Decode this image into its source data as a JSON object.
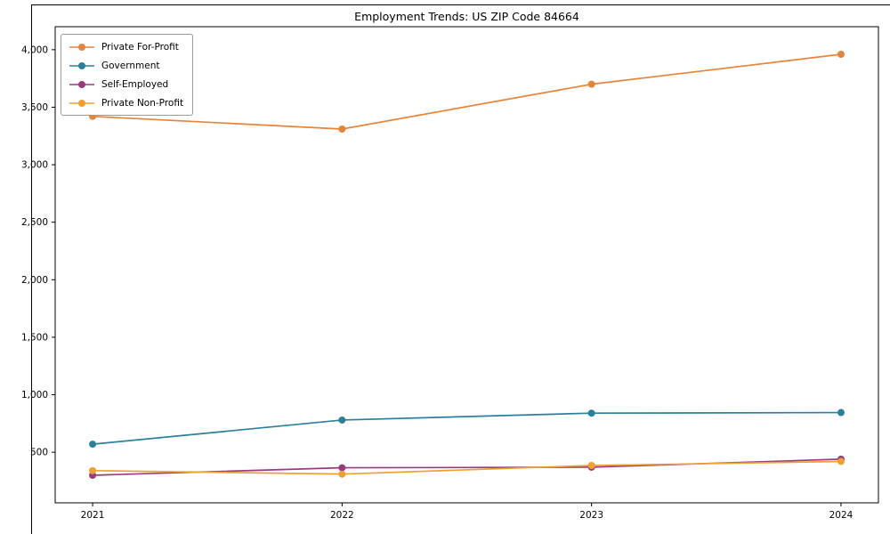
{
  "chart_data": {
    "type": "line",
    "title": "Employment Trends: US ZIP Code 84664",
    "x": [
      2021,
      2022,
      2023,
      2024
    ],
    "x_tick_labels": [
      "2021",
      "2022",
      "2023",
      "2024"
    ],
    "series": [
      {
        "name": "Private For-Profit",
        "color": "#e8833a",
        "values": [
          3420,
          3310,
          3700,
          3960
        ]
      },
      {
        "name": "Government",
        "color": "#2a7f9c",
        "values": [
          570,
          780,
          840,
          845
        ]
      },
      {
        "name": "Self-Employed",
        "color": "#993c7f",
        "values": [
          300,
          365,
          370,
          440
        ]
      },
      {
        "name": "Private Non-Profit",
        "color": "#f0a030",
        "values": [
          340,
          310,
          385,
          420
        ]
      }
    ],
    "yticks": [
      500,
      1000,
      1500,
      2000,
      2500,
      3000,
      3500,
      4000
    ],
    "ytick_labels": [
      "500",
      "1,000",
      "1,500",
      "2,000",
      "2,500",
      "3,000",
      "3,500",
      "4,000"
    ],
    "ylim": [
      60,
      4200
    ],
    "xlim": [
      2020.85,
      2024.15
    ],
    "legend_position": "upper left",
    "grid": false,
    "marker": "circle",
    "axes_color": "#000000",
    "text_color": "#000000"
  }
}
